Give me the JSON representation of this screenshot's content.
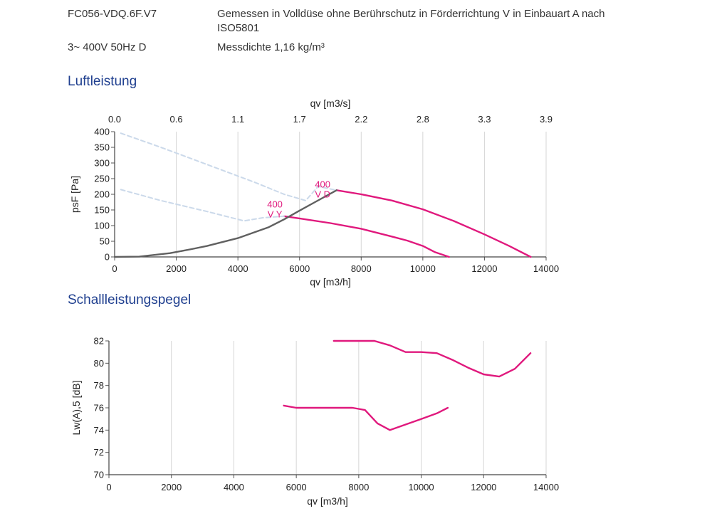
{
  "header": {
    "model": "FC056-VDQ.6F.V7",
    "description": "Gemessen in Volldüse ohne Berührschutz in Förderrichtung V in Einbauart A nach",
    "description_line2": "ISO5801",
    "power": "3~ 400V 50Hz D",
    "density": "Messdichte 1,16 kg/m³"
  },
  "sections": {
    "air_title": "Luftleistung",
    "sound_title": "Schallleistungspegel"
  },
  "colors": {
    "curve": "#e0197d",
    "system": "#606060",
    "dashed": "#cbd9ea",
    "grid": "#d6d6d6",
    "title": "#1f3f8f"
  },
  "chart_data": [
    {
      "type": "line",
      "title": "Luftleistung",
      "xlabel": "qv [m3/h]",
      "x2label": "qv [m3/s]",
      "ylabel": "psF [Pa]",
      "xlim": [
        0,
        14000
      ],
      "ylim": [
        0,
        400
      ],
      "xticks": [
        "0",
        "2000",
        "4000",
        "6000",
        "8000",
        "10000",
        "12000",
        "14000"
      ],
      "yticks": [
        "0",
        "50",
        "100",
        "150",
        "200",
        "250",
        "300",
        "350",
        "400"
      ],
      "x2ticks": [
        "0.0",
        "0.6",
        "1.1",
        "1.7",
        "2.2",
        "2.8",
        "3.3",
        "3.9"
      ],
      "grid": true,
      "series": [
        {
          "name": "V D",
          "role": "fan-curve",
          "x": [
            7200,
            8000,
            9000,
            10000,
            11000,
            12000,
            12800,
            13500
          ],
          "y": [
            213,
            200,
            180,
            152,
            115,
            72,
            35,
            0
          ]
        },
        {
          "name": "V Y",
          "role": "fan-curve",
          "x": [
            5500,
            6000,
            7000,
            8000,
            9000,
            9500,
            10000,
            10400,
            10850
          ],
          "y": [
            130,
            123,
            108,
            90,
            65,
            52,
            35,
            15,
            0
          ]
        },
        {
          "name": "system",
          "role": "system-curve",
          "x": [
            0,
            800,
            1800,
            2500,
            3000,
            4000,
            5000,
            5500,
            6000,
            6500,
            7200
          ],
          "y": [
            0,
            1,
            12,
            25,
            35,
            60,
            95,
            120,
            148,
            175,
            213
          ]
        },
        {
          "name": "limit-upper",
          "role": "dashed",
          "x": [
            200,
            1500,
            3000,
            4500,
            5500,
            6200,
            6600,
            7200
          ],
          "y": [
            395,
            350,
            295,
            240,
            200,
            180,
            225,
            213
          ]
        },
        {
          "name": "limit-lower",
          "role": "dashed",
          "x": [
            200,
            1500,
            3000,
            4200,
            4800,
            5500
          ],
          "y": [
            215,
            180,
            145,
            115,
            125,
            130
          ]
        }
      ],
      "annotations": [
        {
          "lines": [
            "400",
            "V D"
          ],
          "x": 6750,
          "y": 222
        },
        {
          "lines": [
            "400",
            "V Y"
          ],
          "x": 5200,
          "y": 158
        }
      ]
    },
    {
      "type": "line",
      "title": "Schallleistungspegel",
      "xlabel": "qv [m3/h]",
      "ylabel": "Lw(A),5 [dB]",
      "xlim": [
        0,
        14000
      ],
      "ylim": [
        70,
        82
      ],
      "xticks": [
        "0",
        "2000",
        "4000",
        "6000",
        "8000",
        "10000",
        "12000",
        "14000"
      ],
      "yticks": [
        "70",
        "72",
        "74",
        "76",
        "78",
        "80",
        "82"
      ],
      "grid": true,
      "series": [
        {
          "name": "V D",
          "role": "fan-curve",
          "x": [
            7200,
            8000,
            8500,
            9000,
            9500,
            10000,
            10500,
            11000,
            11500,
            12000,
            12500,
            13000,
            13500
          ],
          "y": [
            82.0,
            82.0,
            82.0,
            81.6,
            81.0,
            81.0,
            80.9,
            80.3,
            79.6,
            79.0,
            78.8,
            79.5,
            80.9
          ]
        },
        {
          "name": "V Y",
          "role": "fan-curve",
          "x": [
            5600,
            6000,
            7000,
            7800,
            8200,
            8600,
            9000,
            9500,
            10000,
            10500,
            10850
          ],
          "y": [
            76.2,
            76.0,
            76.0,
            76.0,
            75.8,
            74.6,
            74.0,
            74.5,
            75.0,
            75.5,
            76.0
          ]
        }
      ]
    }
  ]
}
